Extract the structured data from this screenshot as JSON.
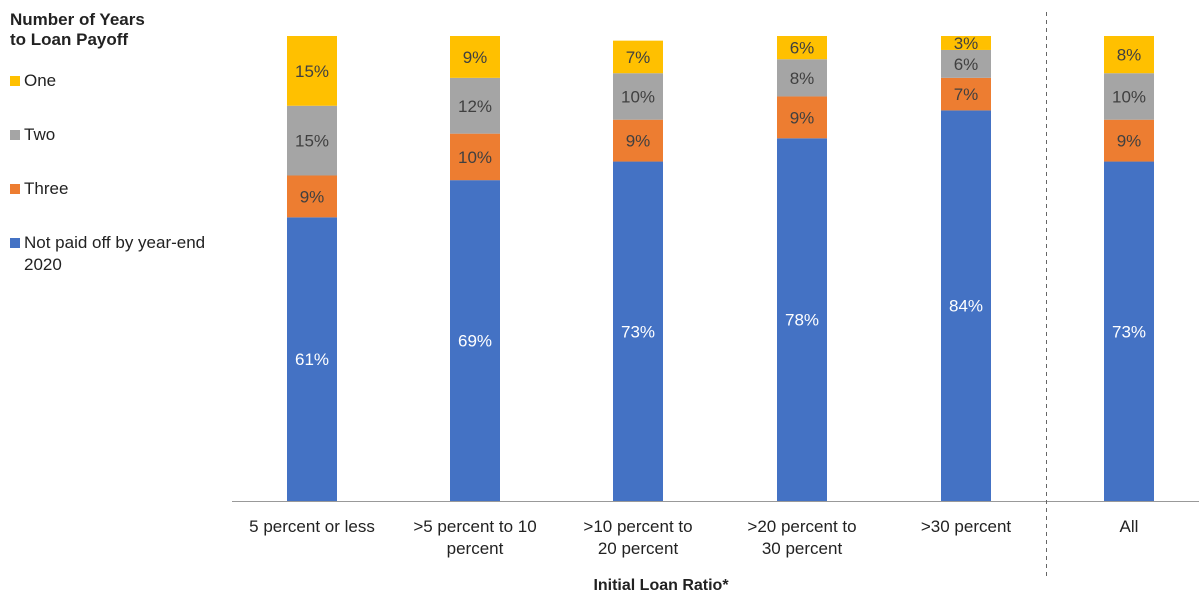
{
  "chart_data": {
    "type": "bar",
    "stacked": true,
    "legend_title": "Number of Years to Loan Payoff",
    "legend_title_lines": [
      "Number of Years",
      "to Loan Payoff"
    ],
    "xlabel": "Initial Loan Ratio*",
    "ylim": [
      0,
      100
    ],
    "categories": [
      "5 percent or less",
      ">5 percent to 10 percent",
      ">10 percent to 20 percent",
      ">20 percent to 30 percent",
      ">30 percent",
      "All"
    ],
    "category_label_lines": [
      [
        "5 percent or less"
      ],
      [
        ">5 percent to 10",
        "percent"
      ],
      [
        ">10 percent to",
        "20 percent"
      ],
      [
        ">20 percent to",
        "30 percent"
      ],
      [
        ">30 percent"
      ],
      [
        "All"
      ]
    ],
    "series": [
      {
        "name": "Not paid off by year-end 2020",
        "legend_lines": [
          "Not paid off by year-end",
          "2020"
        ],
        "color": "#4472C4",
        "values": [
          61,
          69,
          73,
          78,
          84,
          73
        ]
      },
      {
        "name": "Three",
        "legend_lines": [
          "Three"
        ],
        "color": "#ED7D31",
        "values": [
          9,
          10,
          9,
          9,
          7,
          9
        ]
      },
      {
        "name": "Two",
        "legend_lines": [
          "Two"
        ],
        "color": "#A5A5A5",
        "values": [
          15,
          12,
          10,
          8,
          6,
          10
        ]
      },
      {
        "name": "One",
        "legend_lines": [
          "One"
        ],
        "color": "#FFC000",
        "values": [
          15,
          9,
          7,
          6,
          3,
          8
        ]
      }
    ],
    "data_labels": [
      [
        "61%",
        "69%",
        "73%",
        "78%",
        "84%",
        "73%"
      ],
      [
        "9%",
        "10%",
        "9%",
        "9%",
        "7%",
        "9%"
      ],
      [
        "15%",
        "12%",
        "10%",
        "8%",
        "6%",
        "10%"
      ],
      [
        "15%",
        "9%",
        "7%",
        "6%",
        "3%",
        "8%"
      ]
    ],
    "legend_order": [
      3,
      2,
      1,
      0
    ],
    "separator_before_category": 5
  }
}
